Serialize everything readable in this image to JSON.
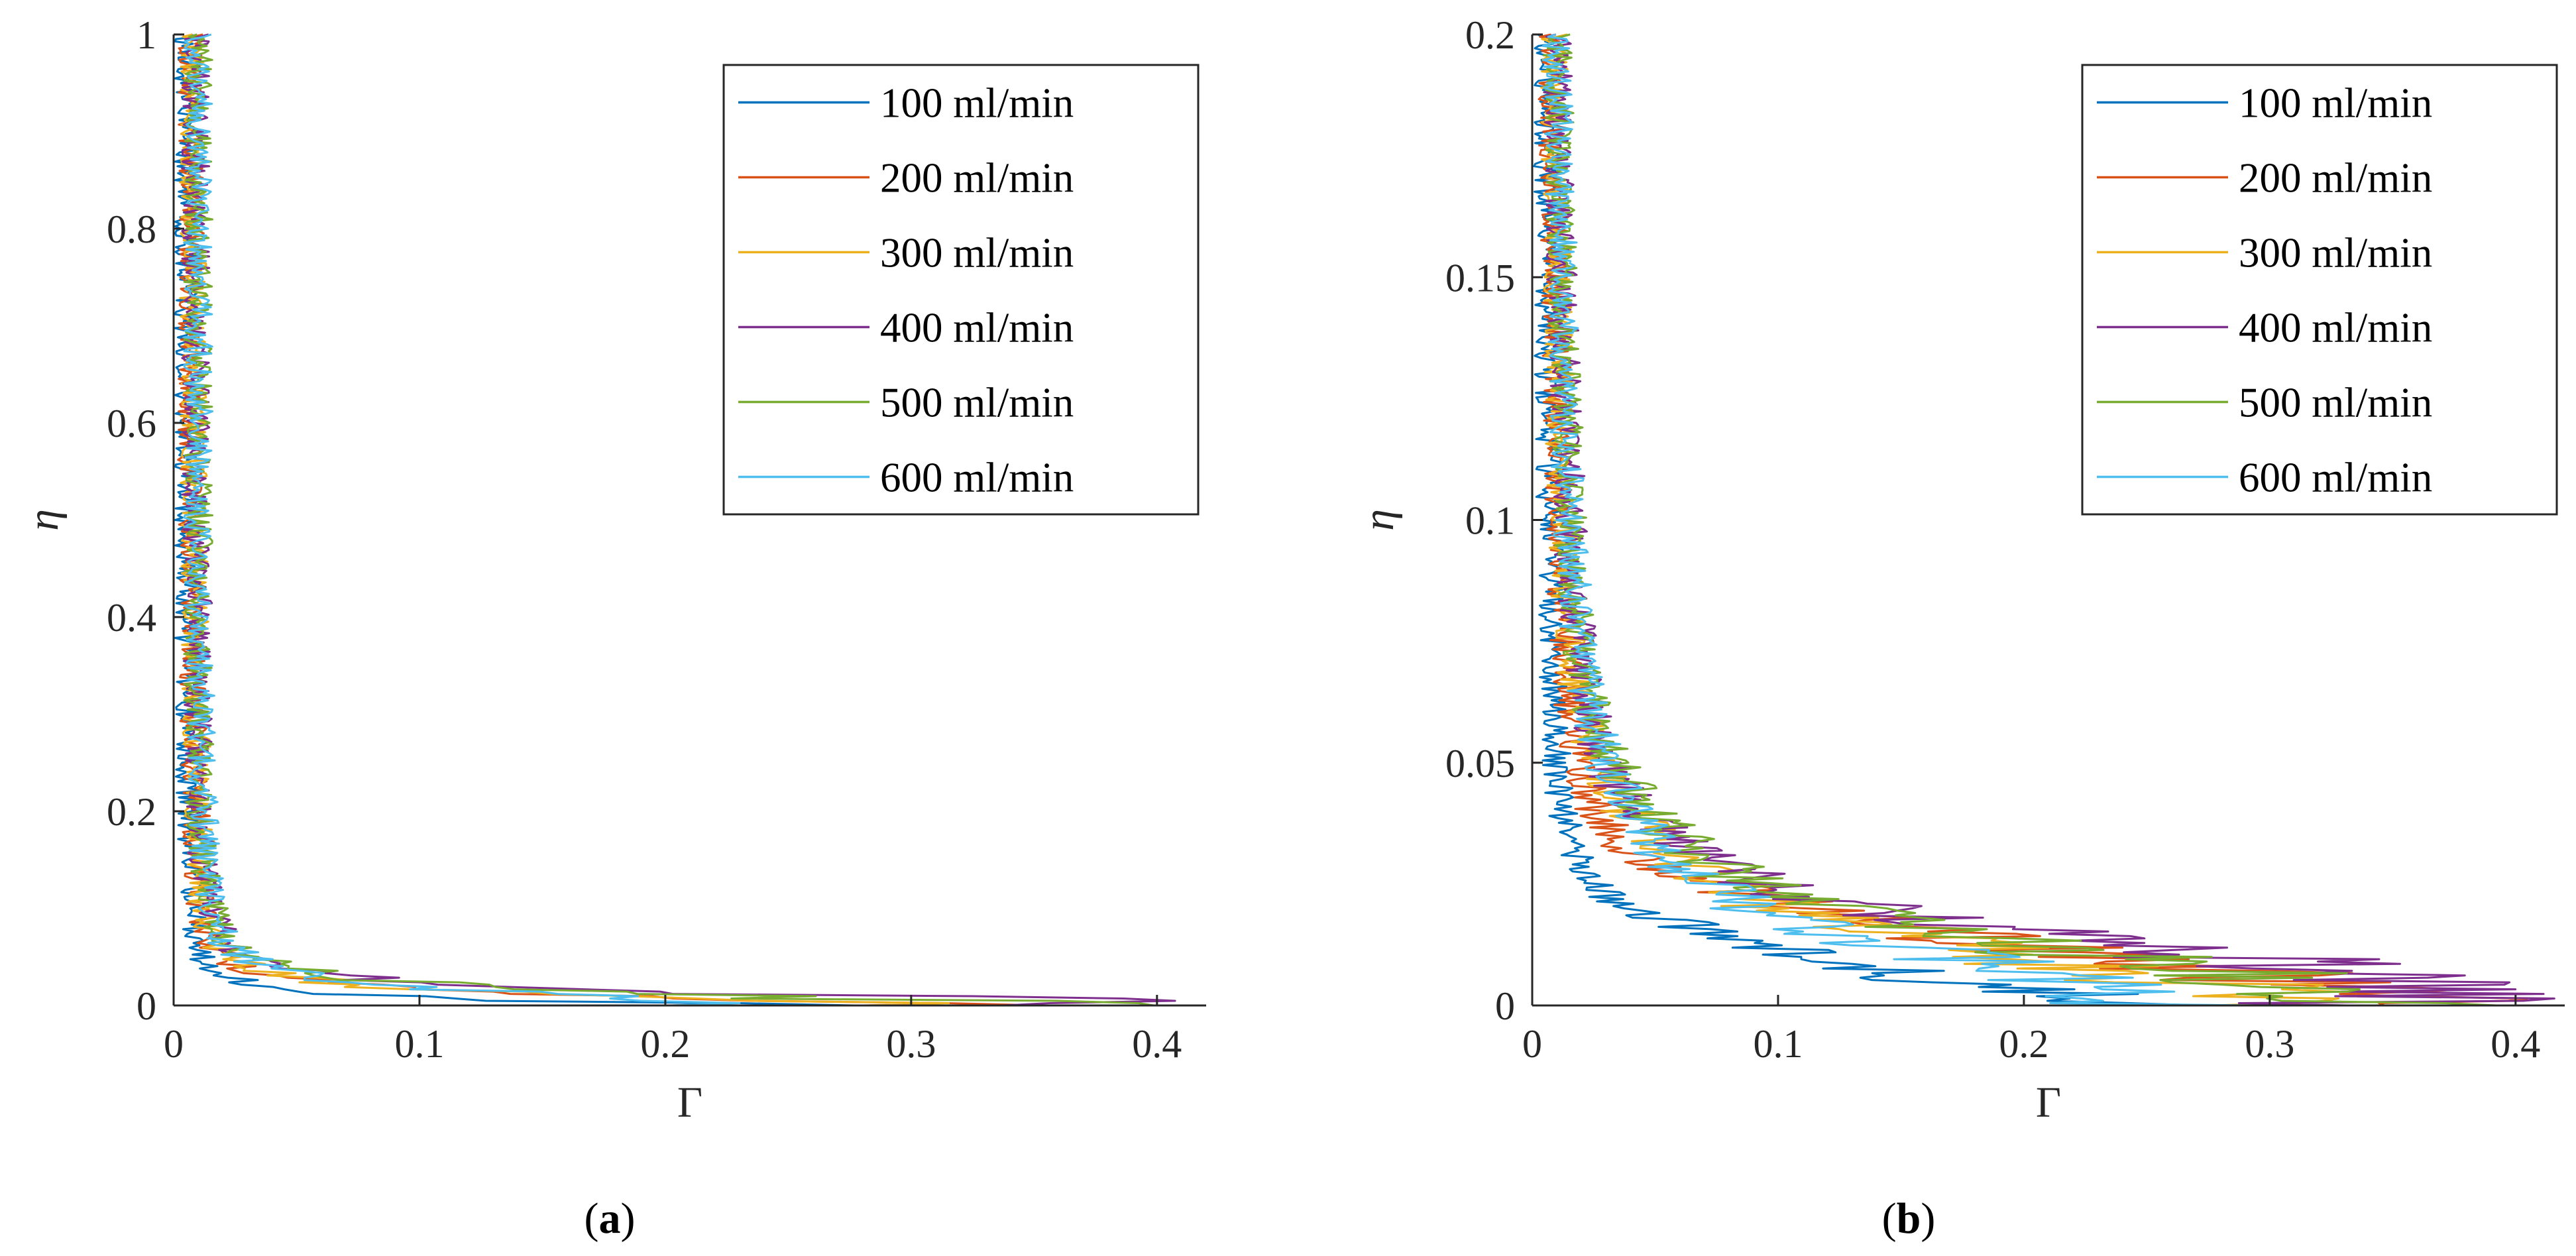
{
  "figure": {
    "subplots": [
      {
        "label_open": "(",
        "label_letter": "a",
        "label_close": ")"
      },
      {
        "label_open": "(",
        "label_letter": "b",
        "label_close": ")"
      }
    ]
  },
  "chart_data": [
    {
      "type": "line",
      "panel": "a",
      "xlabel": "Γ",
      "ylabel": "η",
      "xlim": [
        0,
        0.42
      ],
      "ylim": [
        0,
        1
      ],
      "xticks": [
        0,
        0.1,
        0.2,
        0.3,
        0.4
      ],
      "xtick_labels": [
        "0",
        "0.1",
        "0.2",
        "0.3",
        "0.4"
      ],
      "yticks": [
        0,
        0.2,
        0.4,
        0.6,
        0.8,
        1
      ],
      "ytick_labels": [
        "0",
        "0.2",
        "0.4",
        "0.6",
        "0.8",
        "1"
      ],
      "grid": false,
      "legend_position": "top-right",
      "series": [
        {
          "name": "100 ml/min",
          "color": "#0072BD",
          "points": [
            [
              0.24,
              0.0
            ],
            [
              0.15,
              0.005
            ],
            [
              0.08,
              0.01
            ],
            [
              0.05,
              0.015
            ],
            [
              0.035,
              0.02
            ],
            [
              0.028,
              0.025
            ],
            [
              0.022,
              0.03
            ],
            [
              0.018,
              0.035
            ],
            [
              0.015,
              0.04
            ],
            [
              0.012,
              0.05
            ],
            [
              0.01,
              0.06
            ],
            [
              0.009,
              0.08
            ],
            [
              0.008,
              0.1
            ],
            [
              0.007,
              0.15
            ],
            [
              0.006,
              0.2
            ],
            [
              0.006,
              0.3
            ],
            [
              0.005,
              0.4
            ],
            [
              0.005,
              0.5
            ],
            [
              0.005,
              0.6
            ],
            [
              0.005,
              0.7
            ],
            [
              0.005,
              0.8
            ],
            [
              0.005,
              0.9
            ],
            [
              0.005,
              1.0
            ]
          ]
        },
        {
          "name": "200 ml/min",
          "color": "#D95319",
          "points": [
            [
              0.415,
              0.0
            ],
            [
              0.3,
              0.003
            ],
            [
              0.2,
              0.007
            ],
            [
              0.14,
              0.012
            ],
            [
              0.09,
              0.018
            ],
            [
              0.06,
              0.024
            ],
            [
              0.04,
              0.03
            ],
            [
              0.028,
              0.038
            ],
            [
              0.02,
              0.048
            ],
            [
              0.016,
              0.06
            ],
            [
              0.013,
              0.08
            ],
            [
              0.011,
              0.1
            ],
            [
              0.01,
              0.15
            ],
            [
              0.009,
              0.2
            ],
            [
              0.008,
              0.3
            ],
            [
              0.008,
              0.4
            ],
            [
              0.007,
              0.5
            ],
            [
              0.007,
              0.6
            ],
            [
              0.007,
              0.7
            ],
            [
              0.007,
              0.8
            ],
            [
              0.007,
              0.9
            ],
            [
              0.007,
              1.0
            ]
          ]
        },
        {
          "name": "300 ml/min",
          "color": "#EDB120",
          "points": [
            [
              0.3,
              0.0
            ],
            [
              0.25,
              0.004
            ],
            [
              0.18,
              0.008
            ],
            [
              0.12,
              0.014
            ],
            [
              0.08,
              0.02
            ],
            [
              0.055,
              0.027
            ],
            [
              0.04,
              0.034
            ],
            [
              0.03,
              0.042
            ],
            [
              0.022,
              0.052
            ],
            [
              0.017,
              0.065
            ],
            [
              0.014,
              0.08
            ],
            [
              0.012,
              0.1
            ],
            [
              0.011,
              0.15
            ],
            [
              0.01,
              0.2
            ],
            [
              0.009,
              0.3
            ],
            [
              0.009,
              0.4
            ],
            [
              0.008,
              0.5
            ],
            [
              0.008,
              0.6
            ],
            [
              0.008,
              0.7
            ],
            [
              0.008,
              0.8
            ],
            [
              0.008,
              0.9
            ],
            [
              0.008,
              1.0
            ]
          ]
        },
        {
          "name": "400 ml/min",
          "color": "#7E2F8E",
          "points": [
            [
              0.33,
              0.0
            ],
            [
              0.39,
              0.004
            ],
            [
              0.32,
              0.008
            ],
            [
              0.25,
              0.012
            ],
            [
              0.16,
              0.018
            ],
            [
              0.1,
              0.024
            ],
            [
              0.07,
              0.03
            ],
            [
              0.05,
              0.037
            ],
            [
              0.035,
              0.045
            ],
            [
              0.026,
              0.055
            ],
            [
              0.02,
              0.07
            ],
            [
              0.016,
              0.09
            ],
            [
              0.014,
              0.12
            ],
            [
              0.012,
              0.15
            ],
            [
              0.011,
              0.2
            ],
            [
              0.01,
              0.3
            ],
            [
              0.01,
              0.4
            ],
            [
              0.009,
              0.5
            ],
            [
              0.009,
              0.6
            ],
            [
              0.009,
              0.7
            ],
            [
              0.009,
              0.8
            ],
            [
              0.009,
              0.9
            ],
            [
              0.009,
              1.0
            ]
          ]
        },
        {
          "name": "500 ml/min",
          "color": "#77AC30",
          "points": [
            [
              0.36,
              0.0
            ],
            [
              0.32,
              0.004
            ],
            [
              0.26,
              0.008
            ],
            [
              0.19,
              0.013
            ],
            [
              0.13,
              0.019
            ],
            [
              0.09,
              0.025
            ],
            [
              0.065,
              0.032
            ],
            [
              0.047,
              0.04
            ],
            [
              0.035,
              0.048
            ],
            [
              0.026,
              0.058
            ],
            [
              0.02,
              0.072
            ],
            [
              0.016,
              0.09
            ],
            [
              0.014,
              0.12
            ],
            [
              0.012,
              0.15
            ],
            [
              0.011,
              0.2
            ],
            [
              0.01,
              0.3
            ],
            [
              0.01,
              0.4
            ],
            [
              0.01,
              0.5
            ],
            [
              0.01,
              0.6
            ],
            [
              0.01,
              0.7
            ],
            [
              0.01,
              0.8
            ],
            [
              0.01,
              0.9
            ],
            [
              0.01,
              1.0
            ]
          ]
        },
        {
          "name": "600 ml/min",
          "color": "#4DBEEE",
          "points": [
            [
              0.25,
              0.0
            ],
            [
              0.22,
              0.005
            ],
            [
              0.17,
              0.01
            ],
            [
              0.12,
              0.015
            ],
            [
              0.085,
              0.021
            ],
            [
              0.062,
              0.028
            ],
            [
              0.047,
              0.035
            ],
            [
              0.036,
              0.043
            ],
            [
              0.028,
              0.052
            ],
            [
              0.022,
              0.064
            ],
            [
              0.018,
              0.08
            ],
            [
              0.015,
              0.1
            ],
            [
              0.013,
              0.15
            ],
            [
              0.012,
              0.2
            ],
            [
              0.011,
              0.3
            ],
            [
              0.01,
              0.4
            ],
            [
              0.01,
              0.5
            ],
            [
              0.01,
              0.6
            ],
            [
              0.01,
              0.7
            ],
            [
              0.01,
              0.8
            ],
            [
              0.01,
              0.9
            ],
            [
              0.01,
              1.0
            ]
          ]
        }
      ]
    },
    {
      "type": "line",
      "panel": "b",
      "xlabel": "Γ",
      "ylabel": "η",
      "xlim": [
        0,
        0.42
      ],
      "ylim": [
        0,
        0.2
      ],
      "xticks": [
        0,
        0.1,
        0.2,
        0.3,
        0.4
      ],
      "xtick_labels": [
        "0",
        "0.1",
        "0.2",
        "0.3",
        "0.4"
      ],
      "yticks": [
        0,
        0.05,
        0.1,
        0.15,
        0.2
      ],
      "ytick_labels": [
        "0",
        "0.05",
        "0.1",
        "0.15",
        "0.2"
      ],
      "grid": false,
      "legend_position": "top-right",
      "series": [
        {
          "name": "100 ml/min",
          "color": "#0072BD",
          "points": [
            [
              0.24,
              0.0
            ],
            [
              0.2,
              0.003
            ],
            [
              0.15,
              0.007
            ],
            [
              0.1,
              0.012
            ],
            [
              0.06,
              0.017
            ],
            [
              0.03,
              0.022
            ],
            [
              0.018,
              0.03
            ],
            [
              0.012,
              0.04
            ],
            [
              0.01,
              0.05
            ],
            [
              0.009,
              0.06
            ],
            [
              0.008,
              0.08
            ],
            [
              0.007,
              0.1
            ],
            [
              0.006,
              0.13
            ],
            [
              0.006,
              0.16
            ],
            [
              0.005,
              0.18
            ],
            [
              0.005,
              0.2
            ]
          ]
        },
        {
          "name": "200 ml/min",
          "color": "#D95319",
          "points": [
            [
              0.415,
              0.0
            ],
            [
              0.35,
              0.003
            ],
            [
              0.28,
              0.007
            ],
            [
              0.2,
              0.012
            ],
            [
              0.13,
              0.018
            ],
            [
              0.08,
              0.024
            ],
            [
              0.045,
              0.03
            ],
            [
              0.028,
              0.038
            ],
            [
              0.02,
              0.048
            ],
            [
              0.016,
              0.06
            ],
            [
              0.013,
              0.08
            ],
            [
              0.011,
              0.1
            ],
            [
              0.01,
              0.13
            ],
            [
              0.009,
              0.16
            ],
            [
              0.008,
              0.18
            ],
            [
              0.008,
              0.2
            ]
          ]
        },
        {
          "name": "300 ml/min",
          "color": "#EDB120",
          "points": [
            [
              0.3,
              0.0
            ],
            [
              0.28,
              0.004
            ],
            [
              0.22,
              0.008
            ],
            [
              0.16,
              0.014
            ],
            [
              0.1,
              0.02
            ],
            [
              0.07,
              0.027
            ],
            [
              0.05,
              0.034
            ],
            [
              0.035,
              0.042
            ],
            [
              0.025,
              0.052
            ],
            [
              0.018,
              0.065
            ],
            [
              0.014,
              0.08
            ],
            [
              0.012,
              0.1
            ],
            [
              0.011,
              0.13
            ],
            [
              0.01,
              0.16
            ],
            [
              0.009,
              0.18
            ],
            [
              0.009,
              0.2
            ]
          ]
        },
        {
          "name": "400 ml/min",
          "color": "#7E2F8E",
          "points": [
            [
              0.33,
              0.0
            ],
            [
              0.39,
              0.004
            ],
            [
              0.32,
              0.008
            ],
            [
              0.25,
              0.012
            ],
            [
              0.16,
              0.018
            ],
            [
              0.1,
              0.024
            ],
            [
              0.07,
              0.03
            ],
            [
              0.05,
              0.037
            ],
            [
              0.035,
              0.045
            ],
            [
              0.026,
              0.055
            ],
            [
              0.02,
              0.07
            ],
            [
              0.016,
              0.09
            ],
            [
              0.014,
              0.12
            ],
            [
              0.012,
              0.15
            ],
            [
              0.011,
              0.18
            ],
            [
              0.01,
              0.2
            ]
          ]
        },
        {
          "name": "500 ml/min",
          "color": "#77AC30",
          "points": [
            [
              0.36,
              0.0
            ],
            [
              0.32,
              0.004
            ],
            [
              0.26,
              0.008
            ],
            [
              0.19,
              0.013
            ],
            [
              0.13,
              0.019
            ],
            [
              0.09,
              0.025
            ],
            [
              0.065,
              0.032
            ],
            [
              0.047,
              0.04
            ],
            [
              0.035,
              0.048
            ],
            [
              0.026,
              0.058
            ],
            [
              0.02,
              0.072
            ],
            [
              0.016,
              0.09
            ],
            [
              0.014,
              0.12
            ],
            [
              0.012,
              0.15
            ],
            [
              0.011,
              0.18
            ],
            [
              0.01,
              0.2
            ]
          ]
        },
        {
          "name": "600 ml/min",
          "color": "#4DBEEE",
          "points": [
            [
              0.25,
              0.0
            ],
            [
              0.22,
              0.005
            ],
            [
              0.17,
              0.01
            ],
            [
              0.12,
              0.015
            ],
            [
              0.085,
              0.021
            ],
            [
              0.062,
              0.028
            ],
            [
              0.047,
              0.035
            ],
            [
              0.036,
              0.043
            ],
            [
              0.028,
              0.052
            ],
            [
              0.022,
              0.064
            ],
            [
              0.018,
              0.08
            ],
            [
              0.015,
              0.1
            ],
            [
              0.013,
              0.13
            ],
            [
              0.012,
              0.16
            ],
            [
              0.011,
              0.18
            ],
            [
              0.01,
              0.2
            ]
          ]
        }
      ]
    }
  ]
}
